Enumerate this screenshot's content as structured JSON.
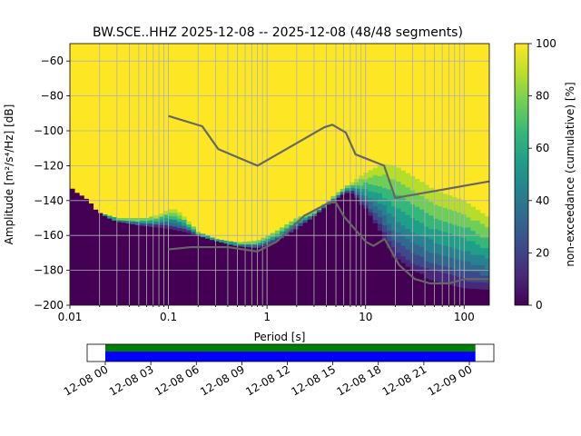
{
  "title": "BW.SCE..HHZ   2025-12-08 -- 2025-12-08  (48/48 segments)",
  "colors": {
    "viridis": [
      "#440154",
      "#482878",
      "#3e4989",
      "#31688e",
      "#26828e",
      "#1f9e89",
      "#35b779",
      "#6ece58",
      "#b5de2b",
      "#fde725"
    ],
    "noise_model": "#666666",
    "grid": "#b0b0b0",
    "coverage_green": "#008000",
    "coverage_blue": "#0000ff"
  },
  "chart_data": [
    {
      "type": "heatmap",
      "xlabel": "Period [s]",
      "ylabel": "Amplitude [m²/s⁴/Hz] [dB]",
      "x_scale": "log",
      "xlim": [
        0.01,
        180
      ],
      "ylim": [
        -200,
        -50
      ],
      "x_ticks": [
        0.01,
        0.1,
        1,
        10,
        100
      ],
      "x_tick_labels": [
        "0.01",
        "0.1",
        "1",
        "10",
        "100"
      ],
      "y_ticks": [
        -200,
        -180,
        -160,
        -140,
        -120,
        -100,
        -80,
        -60
      ],
      "y_tick_labels": [
        "−200",
        "−180",
        "−160",
        "−140",
        "−120",
        "−100",
        "−80",
        "−60"
      ],
      "grid": true,
      "colorbar": {
        "label": "non-exceedance (cumulative) [%]",
        "range": [
          0,
          100
        ],
        "ticks": [
          0,
          20,
          40,
          60,
          80,
          100
        ],
        "tick_labels": [
          "0",
          "20",
          "40",
          "60",
          "80",
          "100"
        ]
      },
      "psd_lower_envelope": {
        "periods": [
          0.01,
          0.012,
          0.014,
          0.016,
          0.018,
          0.02,
          0.025,
          0.03,
          0.04,
          0.05,
          0.07,
          0.1,
          0.15,
          0.2,
          0.3,
          0.5,
          0.8,
          1.2,
          2,
          3,
          4,
          5,
          6,
          7,
          8,
          10,
          15,
          20,
          30,
          50,
          100,
          180
        ],
        "db": [
          -132,
          -136,
          -138,
          -141,
          -145,
          -147,
          -150,
          -152,
          -153,
          -154,
          -155,
          -156,
          -158,
          -160,
          -163,
          -166,
          -167,
          -164,
          -156,
          -149,
          -143,
          -139,
          -136,
          -135,
          -138,
          -146,
          -162,
          -176,
          -184,
          -188,
          -192,
          -193
        ]
      },
      "psd_upper_envelope": {
        "periods": [
          0.01,
          0.02,
          0.03,
          0.04,
          0.06,
          0.08,
          0.1,
          0.12,
          0.15,
          0.2,
          0.3,
          0.5,
          0.8,
          1.2,
          2,
          3,
          4,
          5,
          7,
          10,
          15,
          20,
          30,
          50,
          100,
          180
        ],
        "db": [
          -132,
          -147,
          -150,
          -150,
          -150,
          -148,
          -145,
          -145,
          -150,
          -158,
          -162,
          -164,
          -163,
          -158,
          -150,
          -146,
          -141,
          -136,
          -130,
          -124,
          -119,
          -120,
          -126,
          -134,
          -140,
          -150
        ]
      },
      "high_noise_model": {
        "periods": [
          0.1,
          0.22,
          0.32,
          0.8,
          3.8,
          4.6,
          6.3,
          7.9,
          15.4,
          20,
          180
        ],
        "db": [
          -91.5,
          -97.4,
          -110.5,
          -120,
          -98,
          -96.5,
          -101,
          -113.5,
          -120,
          -138.5,
          -129
        ]
      },
      "low_noise_model": {
        "periods": [
          0.1,
          0.17,
          0.4,
          0.8,
          1.24,
          2.4,
          4.3,
          5,
          6,
          10,
          12,
          15.6,
          21.9,
          31.6,
          45,
          70,
          101,
          154,
          180
        ],
        "db": [
          -168,
          -166.7,
          -166.7,
          -169.2,
          -163.7,
          -148.6,
          -141.1,
          -141.1,
          -149,
          -163.5,
          -166,
          -162,
          -177,
          -185,
          -187.5,
          -187.5,
          -185,
          -185,
          -185
        ]
      }
    },
    {
      "type": "bar",
      "role": "data-coverage",
      "x_tick_labels": [
        "12-08 00",
        "12-08 03",
        "12-08 06",
        "12-08 09",
        "12-08 12",
        "12-08 15",
        "12-08 18",
        "12-08 21",
        "12-09 00"
      ],
      "coverage_hours": [
        0,
        24.4
      ]
    }
  ]
}
